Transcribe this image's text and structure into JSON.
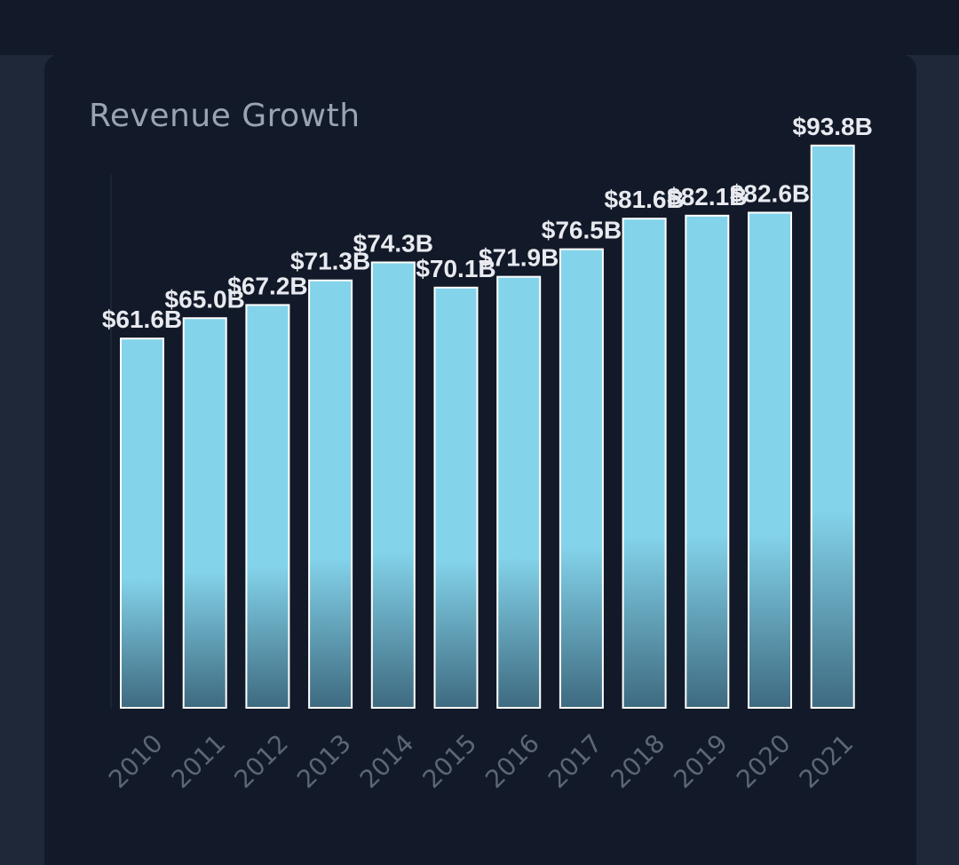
{
  "chart_data": {
    "type": "bar",
    "title": "Revenue Growth",
    "categories": [
      "2010",
      "2011",
      "2012",
      "2013",
      "2014",
      "2015",
      "2016",
      "2017",
      "2018",
      "2019",
      "2020",
      "2021"
    ],
    "values": [
      61.6,
      65.0,
      67.2,
      71.3,
      74.3,
      70.1,
      71.9,
      76.5,
      81.6,
      82.1,
      82.6,
      93.8
    ],
    "value_labels": [
      "$61.6B",
      "$65.0B",
      "$67.2B",
      "$71.3B",
      "$74.3B",
      "$70.1B",
      "$71.9B",
      "$76.5B",
      "$81.6B",
      "$82.1B",
      "$82.6B",
      "$93.8B"
    ],
    "xlabel": "",
    "ylabel": "",
    "ylim": [
      0,
      100
    ],
    "bar_color": "#83d3ea",
    "bar_fade_color": "#3e6a80",
    "bar_border_color": "#ffffff",
    "grid": false
  }
}
